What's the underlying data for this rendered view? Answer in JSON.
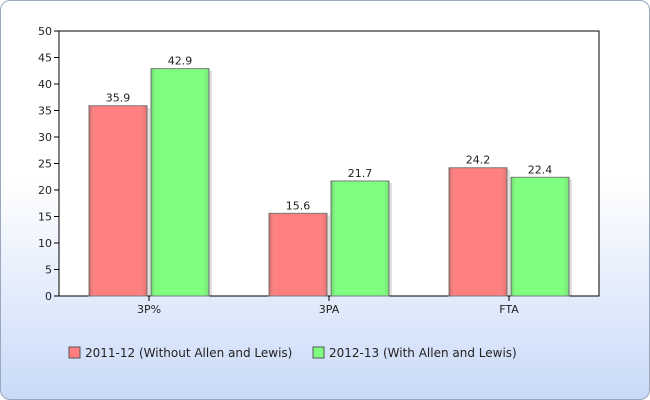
{
  "chart_data": {
    "type": "bar",
    "title": "",
    "xlabel": "",
    "ylabel": "",
    "categories": [
      "3P%",
      "3PA",
      "FTA"
    ],
    "series": [
      {
        "name": "2011-12 (Without Allen and Lewis)",
        "values": [
          35.9,
          15.6,
          24.2
        ],
        "color": "#ff7f7f"
      },
      {
        "name": "2012-13 (With Allen and Lewis)",
        "values": [
          42.9,
          21.7,
          22.4
        ],
        "color": "#7fff7f"
      }
    ],
    "ylim": [
      0,
      50
    ],
    "yticks": [
      0,
      5,
      10,
      15,
      20,
      25,
      30,
      35,
      40,
      45,
      50
    ],
    "grid": false,
    "legend_position": "bottom-left",
    "data_labels": true
  }
}
